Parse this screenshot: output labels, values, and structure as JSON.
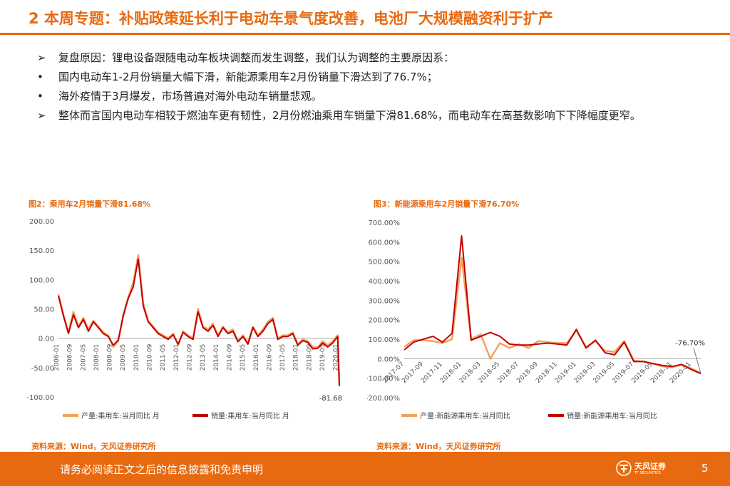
{
  "header": {
    "title": "2 本周专题：补贴政策延长利于电动车景气度改善，电池厂大规模融资利于扩产"
  },
  "bullets": [
    {
      "marker": "➢",
      "text": "复盘原因：锂电设备跟随电动车板块调整而发生调整，我们认为调整的主要原因系："
    },
    {
      "marker": "•",
      "text": "国内电动车1-2月份销量大幅下滑，新能源乘用车2月份销量下滑达到了76.7%；"
    },
    {
      "marker": "•",
      "text": "海外疫情于3月爆发，市场普遍对海外电动车销量悲观。"
    },
    {
      "marker": "➢",
      "text": "整体而言国内电动车相较于燃油车更有韧性，2月份燃油乘用车销量下滑81.68%，而电动车在高基数影响下下降幅度更窄。"
    }
  ],
  "colors": {
    "accent": "#E86A10",
    "series_light": "#F5A05A",
    "series_dark": "#C00000"
  },
  "figures": [
    {
      "title": "图2：乘用车2月销量下滑81.68%",
      "source": "资料来源：Wind，天风证券研究所"
    },
    {
      "title": "图3：新能源乘用车2月销量下滑76.70%",
      "source": "资料来源：Wind，天风证券研究所"
    }
  ],
  "chart_data": [
    {
      "type": "line",
      "title": "图2：乘用车2月销量下滑81.68%",
      "xlabel": "",
      "ylabel": "",
      "ylim": [
        -100,
        200
      ],
      "y_ticks": [
        "200.00",
        "150.00",
        "100.00",
        "50.00",
        "0.00",
        "-50.00",
        "-100.00"
      ],
      "x_ticks": [
        "2006-01",
        "2006-09",
        "2007-05",
        "2008-01",
        "2008-09",
        "2009-05",
        "2010-01",
        "2010-09",
        "2011-05",
        "2012-01",
        "2012-09",
        "2013-05",
        "2014-01",
        "2014-09",
        "2015-05",
        "2016-01",
        "2016-09",
        "2017-05",
        "2018-01",
        "2018-09",
        "2019-05",
        "2020-01"
      ],
      "annotation": "-81.68",
      "legend": "bottom",
      "grid": false,
      "series": [
        {
          "name": "产量:乘用车:当月同比 月",
          "color": "#F5A05A",
          "x": [
            "2006-01",
            "2006-04",
            "2006-07",
            "2006-10",
            "2007-01",
            "2007-04",
            "2007-07",
            "2007-10",
            "2008-01",
            "2008-04",
            "2008-07",
            "2008-10",
            "2009-01",
            "2009-04",
            "2009-07",
            "2009-10",
            "2010-01",
            "2010-04",
            "2010-07",
            "2010-10",
            "2011-01",
            "2011-04",
            "2011-07",
            "2011-10",
            "2012-01",
            "2012-04",
            "2012-07",
            "2012-10",
            "2013-01",
            "2013-04",
            "2013-07",
            "2013-10",
            "2014-01",
            "2014-04",
            "2014-07",
            "2014-10",
            "2015-01",
            "2015-04",
            "2015-07",
            "2015-10",
            "2016-01",
            "2016-04",
            "2016-07",
            "2016-10",
            "2017-01",
            "2017-04",
            "2017-07",
            "2017-10",
            "2018-01",
            "2018-04",
            "2018-07",
            "2018-10",
            "2019-01",
            "2019-04",
            "2019-07",
            "2019-10",
            "2020-01",
            "2020-02"
          ],
          "values": [
            75,
            40,
            10,
            45,
            20,
            35,
            15,
            30,
            20,
            10,
            5,
            -15,
            -5,
            40,
            70,
            95,
            142,
            60,
            30,
            20,
            10,
            5,
            0,
            8,
            -12,
            12,
            5,
            0,
            50,
            20,
            15,
            25,
            5,
            20,
            10,
            15,
            -5,
            5,
            -8,
            20,
            5,
            15,
            28,
            35,
            0,
            5,
            5,
            10,
            -10,
            -2,
            -5,
            -15,
            -15,
            -5,
            -12,
            -5,
            5,
            -80
          ]
        },
        {
          "name": "销量:乘用车:当月同比 月",
          "color": "#C00000",
          "x": [
            "2006-01",
            "2006-04",
            "2006-07",
            "2006-10",
            "2007-01",
            "2007-04",
            "2007-07",
            "2007-10",
            "2008-01",
            "2008-04",
            "2008-07",
            "2008-10",
            "2009-01",
            "2009-04",
            "2009-07",
            "2009-10",
            "2010-01",
            "2010-04",
            "2010-07",
            "2010-10",
            "2011-01",
            "2011-04",
            "2011-07",
            "2011-10",
            "2012-01",
            "2012-04",
            "2012-07",
            "2012-10",
            "2013-01",
            "2013-04",
            "2013-07",
            "2013-10",
            "2014-01",
            "2014-04",
            "2014-07",
            "2014-10",
            "2015-01",
            "2015-04",
            "2015-07",
            "2015-10",
            "2016-01",
            "2016-04",
            "2016-07",
            "2016-10",
            "2017-01",
            "2017-04",
            "2017-07",
            "2017-10",
            "2018-01",
            "2018-04",
            "2018-07",
            "2018-10",
            "2019-01",
            "2019-04",
            "2019-07",
            "2019-10",
            "2020-01",
            "2020-02"
          ],
          "values": [
            72,
            38,
            8,
            40,
            18,
            32,
            12,
            28,
            18,
            8,
            3,
            -12,
            -3,
            38,
            68,
            88,
            135,
            55,
            28,
            18,
            8,
            3,
            -2,
            6,
            -10,
            10,
            3,
            -2,
            45,
            18,
            12,
            22,
            3,
            18,
            8,
            12,
            -6,
            3,
            -10,
            18,
            3,
            12,
            25,
            32,
            -2,
            3,
            3,
            8,
            -12,
            -4,
            -7,
            -18,
            -17,
            -8,
            -15,
            -8,
            3,
            -81.68
          ]
        }
      ]
    },
    {
      "type": "line",
      "title": "图3：新能源乘用车2月销量下滑76.70%",
      "xlabel": "",
      "ylabel": "",
      "ylim": [
        -200,
        700
      ],
      "y_ticks": [
        "700.00%",
        "600.00%",
        "500.00%",
        "400.00%",
        "300.00%",
        "200.00%",
        "100.00%",
        "0.00%",
        "-100.00%",
        "-200.00%"
      ],
      "x_ticks": [
        "2017-07",
        "2017-09",
        "2017-11",
        "2018-01",
        "2018-03",
        "2018-05",
        "2018-07",
        "2018-09",
        "2018-11",
        "2019-01",
        "2019-03",
        "2019-05",
        "2019-07",
        "2019-09",
        "2019-11",
        "2020-01"
      ],
      "annotation": "-76.70%",
      "legend": "bottom",
      "grid": false,
      "series": [
        {
          "name": "产量:新能源乘用车:当月同比",
          "color": "#F5A05A",
          "x": [
            "2017-07",
            "2017-08",
            "2017-09",
            "2017-10",
            "2017-11",
            "2017-12",
            "2018-01",
            "2018-02",
            "2018-03",
            "2018-04",
            "2018-05",
            "2018-06",
            "2018-07",
            "2018-08",
            "2018-09",
            "2018-10",
            "2018-11",
            "2018-12",
            "2019-01",
            "2019-02",
            "2019-03",
            "2019-04",
            "2019-05",
            "2019-06",
            "2019-07",
            "2019-08",
            "2019-09",
            "2019-10",
            "2019-11",
            "2019-12",
            "2020-01",
            "2020-02"
          ],
          "values": [
            60,
            95,
            95,
            90,
            80,
            100,
            520,
            100,
            125,
            0,
            80,
            55,
            75,
            55,
            90,
            85,
            80,
            80,
            145,
            60,
            90,
            40,
            35,
            90,
            -10,
            -15,
            -25,
            -40,
            -45,
            -30,
            -50,
            -75
          ]
        },
        {
          "name": "销量:新能源乘用车:当月同比",
          "color": "#C00000",
          "x": [
            "2017-07",
            "2017-08",
            "2017-09",
            "2017-10",
            "2017-11",
            "2017-12",
            "2018-01",
            "2018-02",
            "2018-03",
            "2018-04",
            "2018-05",
            "2018-06",
            "2018-07",
            "2018-08",
            "2018-09",
            "2018-10",
            "2018-11",
            "2018-12",
            "2019-01",
            "2019-02",
            "2019-03",
            "2019-04",
            "2019-05",
            "2019-06",
            "2019-07",
            "2019-08",
            "2019-09",
            "2019-10",
            "2019-11",
            "2019-12",
            "2020-01",
            "2020-02"
          ],
          "values": [
            45,
            85,
            100,
            115,
            85,
            130,
            630,
            95,
            115,
            135,
            115,
            75,
            70,
            70,
            75,
            80,
            75,
            70,
            150,
            55,
            95,
            30,
            20,
            85,
            -15,
            -15,
            -25,
            -35,
            -40,
            -30,
            -55,
            -76.7
          ]
        }
      ]
    }
  ],
  "footer": {
    "disclaimer": "请务必阅读正文之后的信息披露和免责申明",
    "brand": "天风证券",
    "brand_sub": "TF SECURITIES",
    "page": "5"
  }
}
